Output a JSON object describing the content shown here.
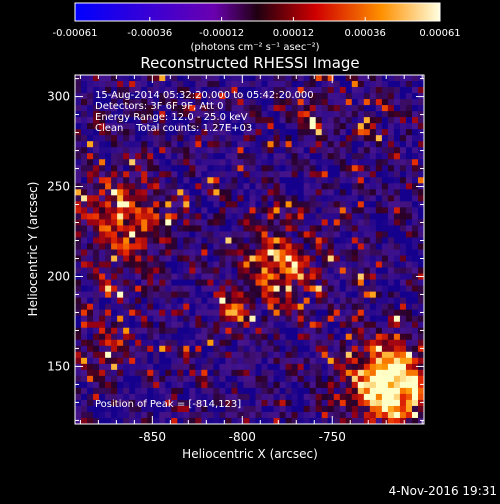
{
  "colorbar": {
    "tick_labels": [
      "-0.00061",
      "-0.00036",
      "-0.00012",
      "0.00012",
      "0.00036",
      "0.00061"
    ],
    "unit_label": "(photons cm⁻² s⁻¹ asec⁻²)",
    "range": [
      -0.00061,
      0.00061
    ]
  },
  "chart_data": {
    "type": "heatmap",
    "title": "Reconstructed RHESSI Image",
    "xlabel": "Heliocentric X (arcsec)",
    "ylabel": "Heliocentric Y (arcsec)",
    "xlim": [
      -893,
      -699
    ],
    "ylim": [
      118,
      312
    ],
    "x_ticks": [
      -850,
      -800,
      -750
    ],
    "y_ticks": [
      150,
      200,
      250,
      300
    ],
    "annotations": [
      "15-Aug-2014 05:32:20.000 to 05:42:20.000",
      "Detectors: 3F 6F 9F, Att 0",
      "Energy Range: 12.0 - 25.0 keV",
      "Clean    Total counts: 1.27E+03"
    ],
    "peak_label": "Position of Peak = [-814,123]",
    "peak": [
      -814,
      123
    ],
    "grid": false
  },
  "footer": {
    "timestamp": "4-Nov-2016 19:31"
  }
}
